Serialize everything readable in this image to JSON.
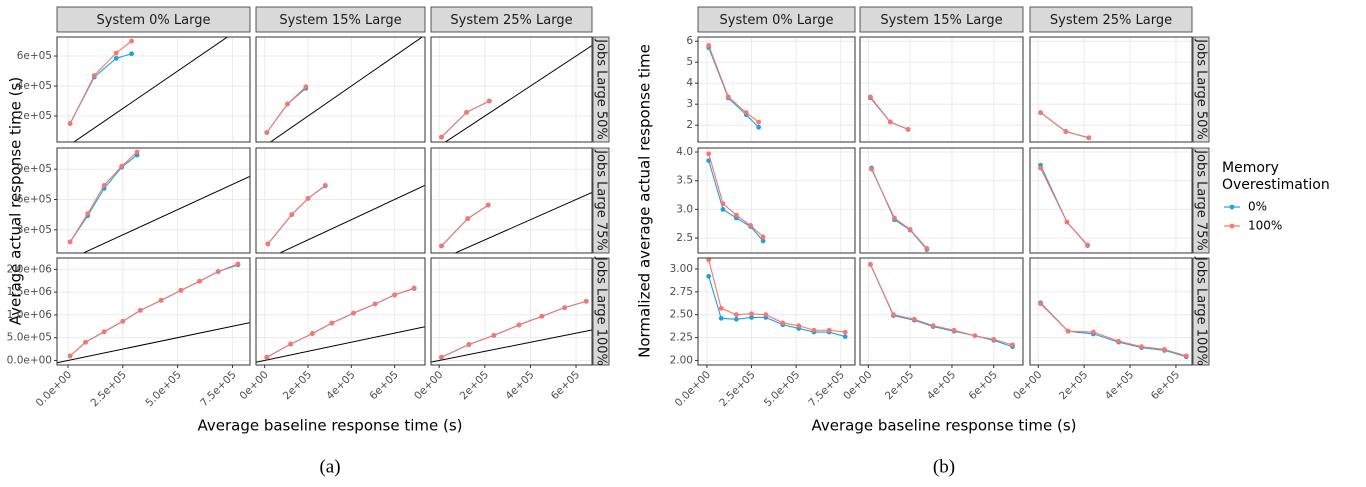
{
  "legend": {
    "title": "Memory Overestimation",
    "position": "right",
    "series": [
      {
        "name": "0%",
        "color": "#1fa3dc"
      },
      {
        "name": "100%",
        "color": "#f8766d"
      }
    ]
  },
  "chart_data": [
    {
      "type": "line",
      "caption": "(a)",
      "x_label": "Average baseline response time (s)",
      "y_label": "Average actual response time (s)",
      "grid": true,
      "identity_line": true,
      "columns": [
        {
          "strip": "System 0% Large",
          "xlim": [
            -50000,
            830000
          ],
          "xticks": [
            {
              "value": 0,
              "label": "0.0e+00"
            },
            {
              "value": 250000,
              "label": "2.5e+05"
            },
            {
              "value": 500000,
              "label": "5.0e+05"
            },
            {
              "value": 750000,
              "label": "7.5e+05"
            }
          ]
        },
        {
          "strip": "System 15% Large",
          "xlim": [
            -40000,
            740000
          ],
          "xticks": [
            {
              "value": 0,
              "label": "0e+00"
            },
            {
              "value": 200000,
              "label": "2e+05"
            },
            {
              "value": 400000,
              "label": "4e+05"
            },
            {
              "value": 600000,
              "label": "6e+05"
            }
          ]
        },
        {
          "strip": "System 25% Large",
          "xlim": [
            -36000,
            670000
          ],
          "xticks": [
            {
              "value": 0,
              "label": "0e+00"
            },
            {
              "value": 200000,
              "label": "2e+05"
            },
            {
              "value": 400000,
              "label": "4e+05"
            },
            {
              "value": 600000,
              "label": "6e+05"
            }
          ]
        }
      ],
      "rows": [
        {
          "strip": "Jobs Large 50%",
          "ylim": [
            27000,
            727000
          ],
          "yticks": [
            {
              "value": 200000,
              "label": "2e+05"
            },
            {
              "value": 400000,
              "label": "4e+05"
            },
            {
              "value": 600000,
              "label": "6e+05"
            }
          ]
        },
        {
          "strip": "Jobs Large 75%",
          "ylim": [
            70000,
            1110000
          ],
          "yticks": [
            {
              "value": 300000,
              "label": "3e+05"
            },
            {
              "value": 600000,
              "label": "6e+05"
            },
            {
              "value": 900000,
              "label": "9e+05"
            }
          ]
        },
        {
          "strip": "Jobs Large 100%",
          "ylim": [
            -100000,
            2250000
          ],
          "yticks": [
            {
              "value": 0,
              "label": "0.0e+00"
            },
            {
              "value": 500000,
              "label": "5.0e+05"
            },
            {
              "value": 1000000,
              "label": "1.0e+06"
            },
            {
              "value": 1500000,
              "label": "1.5e+06"
            },
            {
              "value": 2000000,
              "label": "2.0e+06"
            }
          ]
        }
      ],
      "panels": [
        [
          {
            "x": [
              10000,
              120000,
              220000,
              290000
            ],
            "values": [
              [
                150000,
                460000,
                585000,
                615000
              ],
              [
                150000,
                470000,
                620000,
                700000
              ]
            ]
          },
          {
            "x": [
              10000,
              105000,
              190000
            ],
            "values": [
              [
                90000,
                280000,
                385000
              ],
              [
                90000,
                280000,
                395000
              ]
            ]
          },
          {
            "x": [
              10000,
              120000,
              220000
            ],
            "values": [
              [
                60000,
                225000,
                300000
              ],
              [
                60000,
                225000,
                300000
              ]
            ]
          }
        ],
        [
          {
            "x": [
              10000,
              90000,
              165000,
              245000,
              315000
            ],
            "values": [
              [
                180000,
                440000,
                710000,
                920000,
                1040000
              ],
              [
                180000,
                460000,
                740000,
                930000,
                1070000
              ]
            ]
          },
          {
            "x": [
              15000,
              125000,
              200000,
              280000
            ],
            "values": [
              [
                160000,
                450000,
                610000,
                735000
              ],
              [
                160000,
                450000,
                610000,
                740000
              ]
            ]
          },
          {
            "x": [
              10000,
              125000,
              215000
            ],
            "values": [
              [
                140000,
                410000,
                545000
              ],
              [
                140000,
                410000,
                545000
              ]
            ]
          }
        ],
        [
          {
            "x": [
              10000,
              80000,
              165000,
              250000,
              330000,
              425000,
              515000,
              600000,
              685000,
              775000
            ],
            "values": [
              [
                100000,
                400000,
                630000,
                860000,
                1100000,
                1320000,
                1540000,
                1740000,
                1950000,
                2100000
              ],
              [
                100000,
                400000,
                630000,
                860000,
                1100000,
                1320000,
                1540000,
                1740000,
                1950000,
                2120000
              ]
            ]
          },
          {
            "x": [
              10000,
              120000,
              220000,
              310000,
              410000,
              510000,
              600000,
              690000
            ],
            "values": [
              [
                70000,
                360000,
                590000,
                820000,
                1040000,
                1240000,
                1440000,
                1580000
              ],
              [
                70000,
                360000,
                590000,
                820000,
                1040000,
                1240000,
                1440000,
                1590000
              ]
            ]
          },
          {
            "x": [
              10000,
              130000,
              240000,
              350000,
              450000,
              550000,
              645000
            ],
            "values": [
              [
                70000,
                350000,
                550000,
                780000,
                970000,
                1160000,
                1300000
              ],
              [
                70000,
                350000,
                550000,
                780000,
                970000,
                1160000,
                1300000
              ]
            ]
          }
        ]
      ]
    },
    {
      "type": "line",
      "caption": "(b)",
      "x_label": "Average baseline response time (s)",
      "y_label": "Normalized average actual response time",
      "grid": true,
      "identity_line": false,
      "columns": [
        {
          "strip": "System 0% Large",
          "xlim": [
            -50000,
            830000
          ],
          "xticks": [
            {
              "value": 0,
              "label": "0.0e+00"
            },
            {
              "value": 250000,
              "label": "2.5e+05"
            },
            {
              "value": 500000,
              "label": "5.0e+05"
            },
            {
              "value": 750000,
              "label": "7.5e+05"
            }
          ]
        },
        {
          "strip": "System 15% Large",
          "xlim": [
            -40000,
            740000
          ],
          "xticks": [
            {
              "value": 0,
              "label": "0e+00"
            },
            {
              "value": 200000,
              "label": "2e+05"
            },
            {
              "value": 400000,
              "label": "4e+05"
            },
            {
              "value": 600000,
              "label": "6e+05"
            }
          ]
        },
        {
          "strip": "System 25% Large",
          "xlim": [
            -36000,
            670000
          ],
          "xticks": [
            {
              "value": 0,
              "label": "0e+00"
            },
            {
              "value": 200000,
              "label": "2e+05"
            },
            {
              "value": 400000,
              "label": "4e+05"
            },
            {
              "value": 600000,
              "label": "6e+05"
            }
          ]
        }
      ],
      "rows": [
        {
          "strip": "Jobs Large 50%",
          "ylim": [
            1.2,
            6.2
          ],
          "yticks": [
            2,
            3,
            4,
            5,
            6
          ]
        },
        {
          "strip": "Jobs Large 75%",
          "ylim": [
            2.24,
            4.07
          ],
          "yticks": [
            2.5,
            {
              "value": 3,
              "label": "3.0"
            },
            3.5,
            {
              "value": 4,
              "label": "4.0"
            }
          ]
        },
        {
          "strip": "Jobs Large 100%",
          "ylim": [
            1.95,
            3.12
          ],
          "yticks": [
            {
              "value": 2,
              "label": "2.00"
            },
            {
              "value": 2.25,
              "label": "2.25"
            },
            {
              "value": 2.5,
              "label": "2.50"
            },
            {
              "value": 2.75,
              "label": "2.75"
            },
            {
              "value": 3,
              "label": "3.00"
            }
          ]
        }
      ],
      "panels": [
        [
          {
            "x": [
              10000,
              120000,
              220000,
              290000
            ],
            "values": [
              [
                5.7,
                3.3,
                2.5,
                1.9
              ],
              [
                5.8,
                3.35,
                2.6,
                2.15
              ]
            ]
          },
          {
            "x": [
              10000,
              105000,
              190000
            ],
            "values": [
              [
                3.3,
                2.15,
                1.8
              ],
              [
                3.35,
                2.15,
                1.8
              ]
            ]
          },
          {
            "x": [
              10000,
              120000,
              220000
            ],
            "values": [
              [
                2.6,
                1.7,
                1.4
              ],
              [
                2.6,
                1.7,
                1.4
              ]
            ]
          }
        ],
        [
          {
            "x": [
              10000,
              90000,
              165000,
              245000,
              315000
            ],
            "values": [
              [
                3.85,
                3.0,
                2.85,
                2.7,
                2.45
              ],
              [
                3.97,
                3.1,
                2.9,
                2.72,
                2.52
              ]
            ]
          },
          {
            "x": [
              15000,
              125000,
              200000,
              280000
            ],
            "values": [
              [
                3.72,
                2.82,
                2.64,
                2.3
              ],
              [
                3.7,
                2.85,
                2.65,
                2.32
              ]
            ]
          },
          {
            "x": [
              10000,
              125000,
              215000
            ],
            "values": [
              [
                3.77,
                2.78,
                2.37
              ],
              [
                3.72,
                2.78,
                2.38
              ]
            ]
          }
        ],
        [
          {
            "x": [
              10000,
              80000,
              165000,
              250000,
              330000,
              425000,
              515000,
              600000,
              685000,
              775000
            ],
            "values": [
              [
                2.92,
                2.46,
                2.45,
                2.47,
                2.47,
                2.39,
                2.35,
                2.31,
                2.31,
                2.26
              ],
              [
                3.1,
                2.57,
                2.5,
                2.51,
                2.5,
                2.41,
                2.38,
                2.33,
                2.33,
                2.31
              ]
            ]
          },
          {
            "x": [
              10000,
              120000,
              220000,
              310000,
              410000,
              510000,
              600000,
              690000
            ],
            "values": [
              [
                3.05,
                2.49,
                2.44,
                2.37,
                2.32,
                2.27,
                2.22,
                2.15
              ],
              [
                3.05,
                2.5,
                2.45,
                2.38,
                2.33,
                2.27,
                2.23,
                2.17
              ]
            ]
          },
          {
            "x": [
              10000,
              130000,
              240000,
              350000,
              450000,
              550000,
              645000
            ],
            "values": [
              [
                2.63,
                2.32,
                2.29,
                2.2,
                2.14,
                2.11,
                2.04
              ],
              [
                2.62,
                2.32,
                2.31,
                2.21,
                2.15,
                2.12,
                2.05
              ]
            ]
          }
        ]
      ]
    }
  ]
}
